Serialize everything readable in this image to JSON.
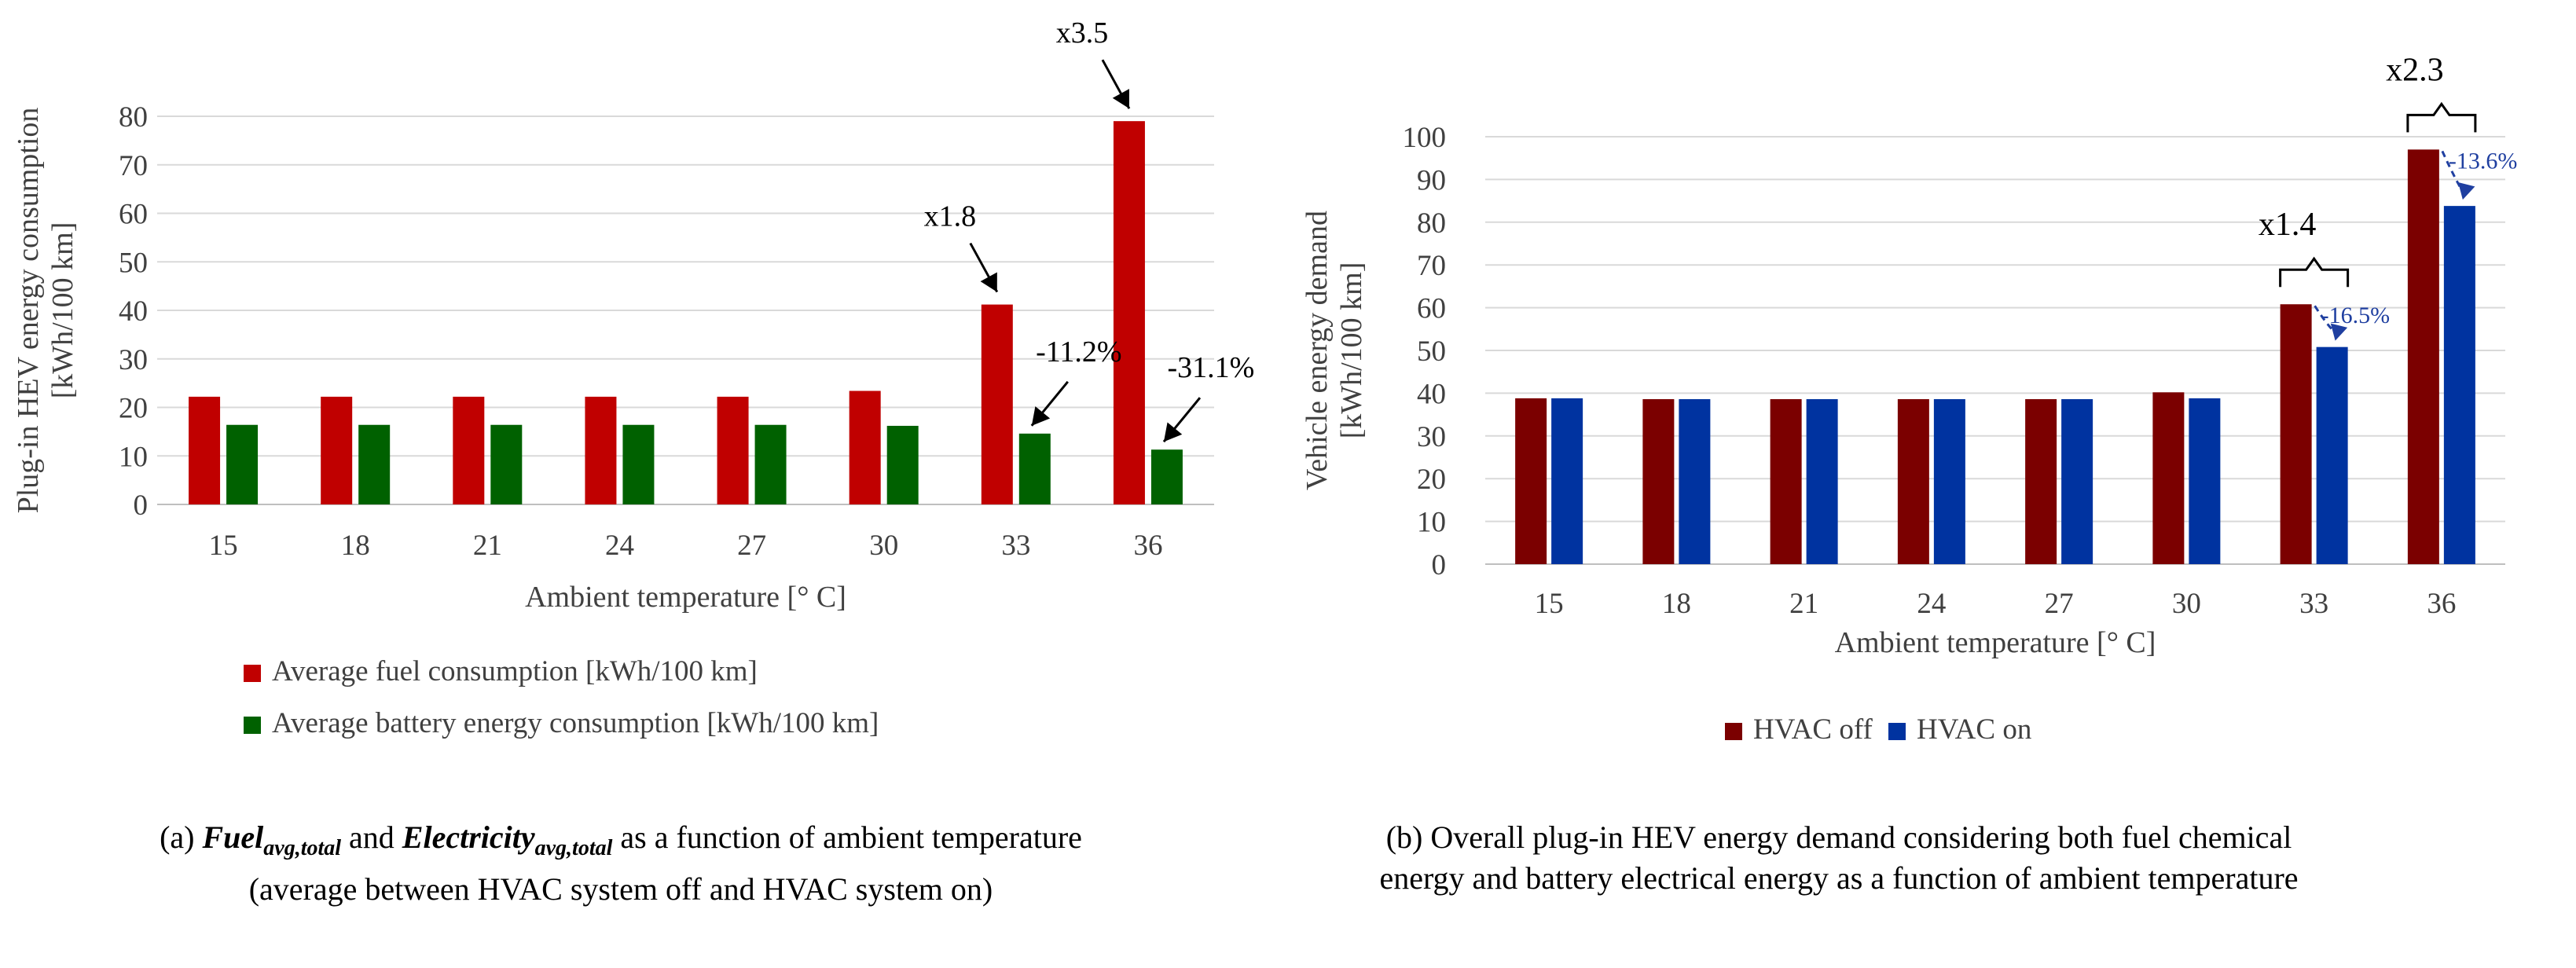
{
  "colors": {
    "fuel": "#c00000",
    "battery": "#006100",
    "hvac_off": "#7b0000",
    "hvac_on": "#0033a0",
    "grid": "#d9d9d9",
    "axis_text": "#404040",
    "annotation_blue": "#1f3fa0"
  },
  "chart_data": [
    {
      "id": "a",
      "type": "bar",
      "ylabel": [
        "Plug-in HEV energy consumption",
        "[kWh/100 km]"
      ],
      "xlabel": "Ambient temperature [° C]",
      "ylim": [
        0,
        80
      ],
      "ytick_step": 10,
      "grid": true,
      "legend_placement": "bottom",
      "categories": [
        "15",
        "18",
        "21",
        "24",
        "27",
        "30",
        "33",
        "36"
      ],
      "series": [
        {
          "name": "Average fuel consumption [kWh/100 km]",
          "color_key": "fuel",
          "values": [
            22.2,
            22.2,
            22.2,
            22.2,
            22.2,
            23.4,
            41.2,
            79.0
          ]
        },
        {
          "name": "Average battery energy consumption [kWh/100 km]",
          "color_key": "battery",
          "values": [
            16.4,
            16.4,
            16.4,
            16.4,
            16.4,
            16.2,
            14.6,
            11.3
          ]
        }
      ],
      "annotations": [
        {
          "text": "x1.8",
          "category": "33",
          "series": 0,
          "style": "arrow"
        },
        {
          "text": "x3.5",
          "category": "36",
          "series": 0,
          "style": "arrow"
        },
        {
          "text": "-11.2%",
          "category": "33",
          "series": 1,
          "style": "arrow"
        },
        {
          "text": "-31.1%",
          "category": "36",
          "series": 1,
          "style": "arrow"
        }
      ]
    },
    {
      "id": "b",
      "type": "bar",
      "ylabel": [
        "Vehicle energy demand",
        "[kWh/100 km]"
      ],
      "xlabel": "Ambient temperature [° C]",
      "ylim": [
        0,
        100
      ],
      "ytick_step": 10,
      "grid": true,
      "legend_placement": "bottom",
      "categories": [
        "15",
        "18",
        "21",
        "24",
        "27",
        "30",
        "33",
        "36"
      ],
      "series": [
        {
          "name": "HVAC off",
          "color_key": "hvac_off",
          "values": [
            38.8,
            38.6,
            38.6,
            38.6,
            38.6,
            40.2,
            60.8,
            97.0
          ]
        },
        {
          "name": "HVAC on",
          "color_key": "hvac_on",
          "values": [
            38.8,
            38.6,
            38.6,
            38.6,
            38.6,
            38.8,
            50.8,
            83.8
          ]
        }
      ],
      "annotations": [
        {
          "text": "x1.4",
          "category": "33",
          "style": "brace"
        },
        {
          "text": "x2.3",
          "category": "36",
          "style": "brace"
        },
        {
          "text": "-16.5%",
          "category": "33",
          "style": "dashed"
        },
        {
          "text": "-13.6%",
          "category": "36",
          "style": "dashed"
        }
      ]
    }
  ],
  "captions": {
    "a": {
      "prefix": "(a) ",
      "fuel": "Fuel",
      "fuel_sub": "avg,total",
      "and": " and ",
      "elec": "Electricity",
      "elec_sub": "avg,total",
      "suffix": " as a function of ambient temperature (average between HVAC system off and HVAC system on)"
    },
    "b": "(b) Overall plug-in HEV energy demand considering both fuel chemical energy and battery electrical energy as a function of ambient temperature"
  }
}
